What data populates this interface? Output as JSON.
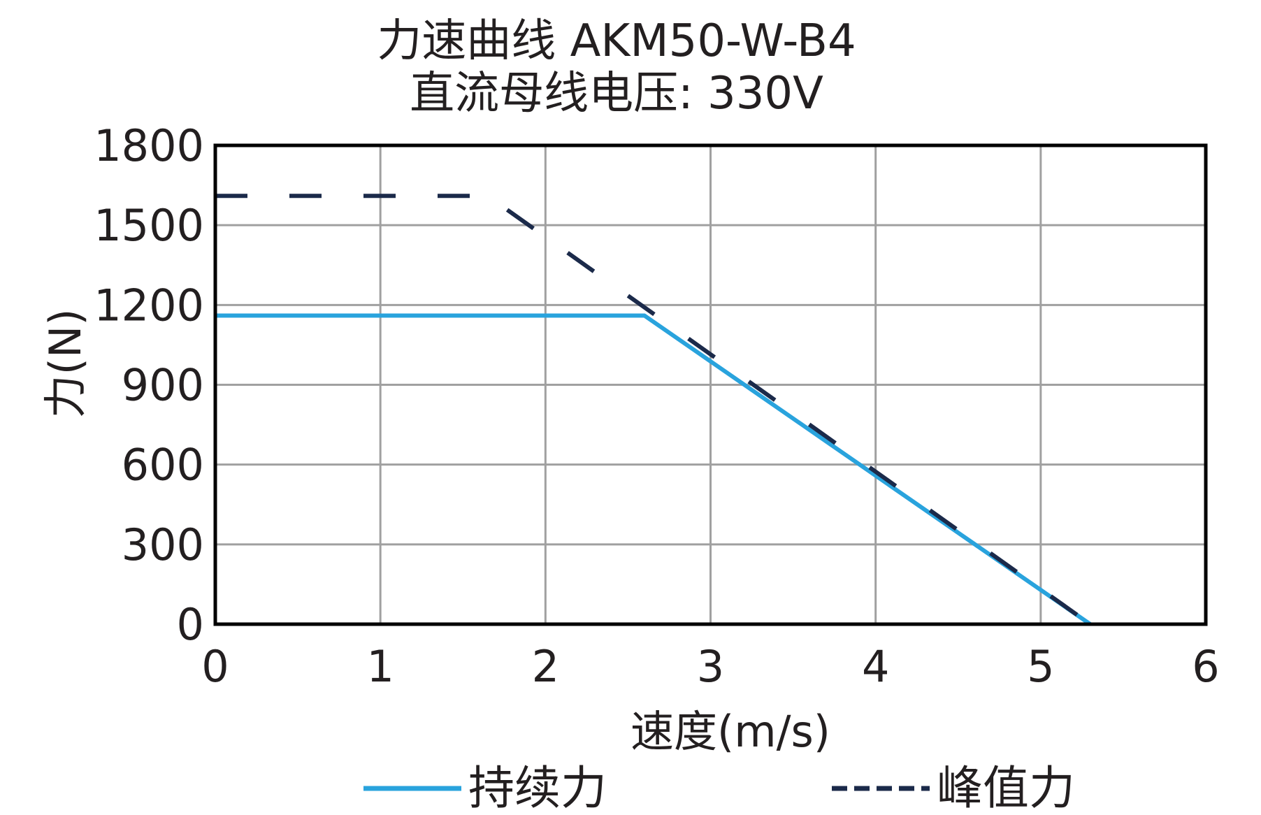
{
  "chart_data": {
    "type": "line",
    "title": "力速曲线 AKM50-W-B4",
    "subtitle": "直流母线电压: 330V",
    "xlabel": "速度(m/s)",
    "ylabel": "力(N)",
    "xlim": [
      0,
      6
    ],
    "ylim": [
      0,
      1800
    ],
    "xticks": [
      "0",
      "1",
      "2",
      "3",
      "4",
      "5",
      "6"
    ],
    "yticks": [
      "0",
      "300",
      "600",
      "900",
      "1200",
      "1500",
      "1800"
    ],
    "grid": true,
    "legend_position": "bottom",
    "series": [
      {
        "name": "持续力",
        "style": "solid",
        "color": "#29a3dd",
        "x": [
          0,
          2.6,
          5.3
        ],
        "y": [
          1160,
          1160,
          0
        ]
      },
      {
        "name": "峰值力",
        "style": "dashed",
        "color": "#1b2a4a",
        "x": [
          0,
          1.65,
          5.3
        ],
        "y": [
          1610,
          1610,
          0
        ]
      }
    ]
  }
}
